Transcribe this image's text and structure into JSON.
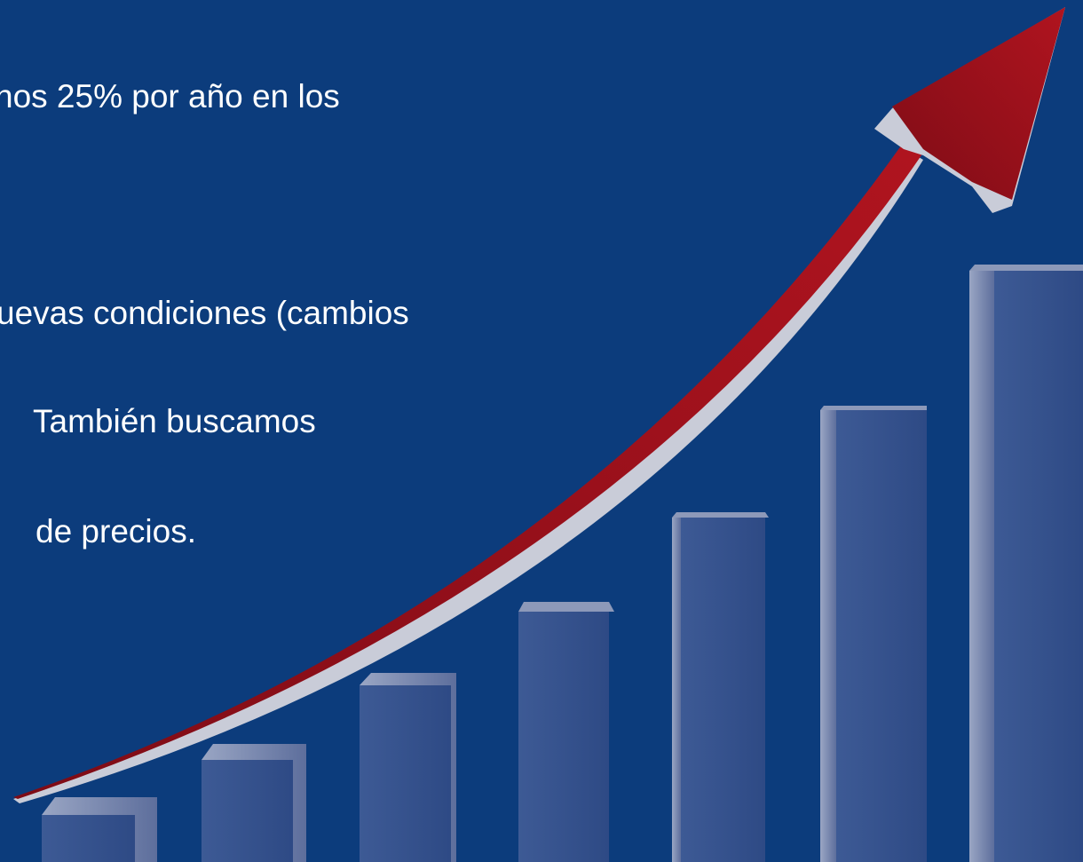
{
  "slide": {
    "lines": [
      "nos 25% por año en los",
      "uevas condiciones (cambios",
      "También buscamos",
      "de precios."
    ]
  }
}
